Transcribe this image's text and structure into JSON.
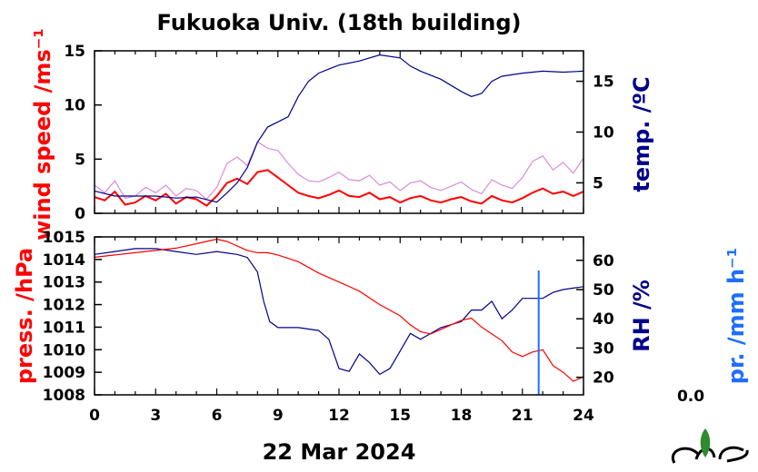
{
  "title": "Fukuoka Univ. (18th building)",
  "date_label": "22 Mar 2024",
  "precip_value": "0.0",
  "colors": {
    "wind": "#ff0000",
    "wind_gust": "#d98ad9",
    "temp": "#00008b",
    "pressure": "#ff0000",
    "rh": "#00008b",
    "precip": "#1e6fff"
  },
  "chart_data": [
    {
      "type": "line",
      "panel": "top",
      "ylabel_left": "wind speed /ms⁻¹",
      "ylabel_right": "temp. /ºC",
      "x_ticks": [
        "0",
        "3",
        "6",
        "9",
        "12",
        "15",
        "18",
        "21",
        "24"
      ],
      "xlim": [
        0,
        24
      ],
      "ylim_left": [
        0,
        15
      ],
      "ylim_right": [
        2,
        18
      ],
      "yticks_left": [
        "0",
        "5",
        "10",
        "15"
      ],
      "yticks_right": [
        "5",
        "10",
        "15"
      ],
      "series": [
        {
          "axis": "right",
          "x": [
            0,
            1,
            2,
            3,
            4,
            5,
            6,
            6.5,
            7,
            7.5,
            8,
            8.5,
            9,
            9.5,
            10,
            10.5,
            11,
            11.5,
            12,
            13,
            14,
            15,
            15.5,
            16,
            17,
            18,
            18.5,
            19,
            19.5,
            20,
            21,
            22,
            23,
            24
          ],
          "values": [
            4.2,
            3.7,
            3.7,
            3.7,
            3.5,
            3.6,
            3.1,
            4.0,
            5.0,
            6.5,
            9.0,
            10.5,
            11.0,
            11.5,
            13.5,
            15.0,
            15.8,
            16.2,
            16.6,
            17.0,
            17.6,
            17.3,
            16.5,
            16.0,
            15.2,
            14.0,
            13.5,
            13.8,
            15.0,
            15.5,
            15.8,
            16.0,
            15.9,
            16.0
          ]
        },
        {
          "axis": "left",
          "x": [
            0,
            0.5,
            1,
            1.5,
            2,
            2.5,
            3,
            3.5,
            4,
            4.5,
            5,
            5.5,
            6,
            6.5,
            7,
            7.5,
            8,
            8.5,
            9,
            9.5,
            10,
            10.5,
            11,
            11.5,
            12,
            12.5,
            13,
            13.5,
            14,
            14.5,
            15,
            15.5,
            16,
            16.5,
            17,
            17.5,
            18,
            18.5,
            19,
            19.5,
            20,
            20.5,
            21,
            21.5,
            22,
            22.5,
            23,
            23.5,
            24
          ],
          "values": [
            1.5,
            1.2,
            2.0,
            0.8,
            1.0,
            1.6,
            1.2,
            1.8,
            0.9,
            1.5,
            1.3,
            0.7,
            1.6,
            2.8,
            3.2,
            2.7,
            3.8,
            4.0,
            3.3,
            2.6,
            1.9,
            1.6,
            1.4,
            1.7,
            2.1,
            1.6,
            1.5,
            1.9,
            1.3,
            1.5,
            1.0,
            1.4,
            1.6,
            1.2,
            1.0,
            1.3,
            1.5,
            1.1,
            0.9,
            1.6,
            1.2,
            1.0,
            1.4,
            1.9,
            2.3,
            1.8,
            2.0,
            1.6,
            2.0
          ]
        },
        {
          "axis": "left",
          "x": [
            0,
            0.5,
            1,
            1.5,
            2,
            2.5,
            3,
            3.5,
            4,
            4.5,
            5,
            5.5,
            6,
            6.5,
            7,
            7.5,
            8,
            8.5,
            9,
            9.5,
            10,
            10.5,
            11,
            11.5,
            12,
            12.5,
            13,
            13.5,
            14,
            14.5,
            15,
            15.5,
            16,
            16.5,
            17,
            17.5,
            18,
            18.5,
            19,
            19.5,
            20,
            20.5,
            21,
            21.5,
            22,
            22.5,
            23,
            23.5,
            24
          ],
          "values": [
            2.6,
            1.9,
            3.0,
            1.4,
            1.6,
            2.4,
            1.9,
            2.6,
            1.6,
            2.3,
            2.1,
            1.3,
            2.4,
            4.6,
            5.2,
            4.4,
            6.6,
            6.0,
            5.8,
            4.6,
            3.6,
            3.0,
            2.9,
            3.3,
            3.8,
            3.1,
            3.0,
            3.5,
            2.6,
            2.9,
            2.1,
            2.8,
            3.0,
            2.4,
            2.1,
            2.5,
            2.9,
            2.2,
            1.8,
            3.1,
            2.6,
            2.3,
            3.3,
            4.8,
            5.3,
            4.0,
            4.7,
            3.7,
            5.1
          ]
        }
      ]
    },
    {
      "type": "line",
      "panel": "bottom",
      "ylabel_left": "press. /hPa",
      "ylabel_right": "RH /%",
      "ylabel_far_right": "pr. /mm h⁻¹",
      "xlabel": "22 Mar 2024",
      "x_ticks": [
        "0",
        "3",
        "6",
        "9",
        "12",
        "15",
        "18",
        "21",
        "24"
      ],
      "xlim": [
        0,
        24
      ],
      "ylim_left": [
        1008,
        1015
      ],
      "ylim_right": [
        14,
        68
      ],
      "yticks_left": [
        "1008",
        "1009",
        "1010",
        "1011",
        "1012",
        "1013",
        "1014",
        "1015"
      ],
      "yticks_right": [
        "20",
        "30",
        "40",
        "50",
        "60"
      ],
      "series": [
        {
          "axis": "left",
          "x": [
            0,
            1,
            2,
            3,
            4,
            5,
            5.5,
            6,
            6.5,
            7,
            7.5,
            8,
            8.5,
            9,
            10,
            11,
            12,
            13,
            14,
            15,
            15.5,
            16,
            16.5,
            17,
            17.5,
            18,
            18.5,
            19,
            19.5,
            20,
            20.5,
            21,
            21.5,
            22,
            22.5,
            23,
            23.5,
            24
          ],
          "values": [
            1014.1,
            1014.2,
            1014.3,
            1014.4,
            1014.5,
            1014.7,
            1014.8,
            1014.9,
            1014.8,
            1014.6,
            1014.4,
            1014.3,
            1014.3,
            1014.2,
            1013.9,
            1013.4,
            1013.0,
            1012.6,
            1012.0,
            1011.5,
            1011.1,
            1010.8,
            1010.7,
            1010.9,
            1011.1,
            1011.3,
            1011.4,
            1011.0,
            1010.7,
            1010.4,
            1009.9,
            1009.7,
            1009.9,
            1010.0,
            1009.3,
            1009.0,
            1008.6,
            1008.8
          ]
        },
        {
          "axis": "right",
          "x": [
            0,
            1,
            2,
            3,
            4,
            5,
            6,
            7,
            7.5,
            8,
            8.3,
            8.6,
            9,
            10,
            11,
            11.5,
            12,
            12.5,
            13,
            13.5,
            14,
            14.5,
            15,
            15.5,
            16,
            17,
            18,
            18.5,
            19,
            19.5,
            20,
            20.5,
            21,
            21.5,
            22,
            22.5,
            23,
            24
          ],
          "values": [
            62,
            63,
            64,
            64,
            63,
            62,
            63,
            62,
            61,
            56,
            46,
            39,
            37,
            37,
            36,
            33,
            23,
            22,
            28,
            25,
            21,
            23,
            29,
            35,
            33,
            37,
            39,
            43,
            43,
            46,
            40,
            43,
            47,
            47,
            47,
            49,
            50,
            51
          ]
        },
        {
          "axis": "precip",
          "x": [
            21.8
          ],
          "values": [
            0.0
          ]
        }
      ]
    }
  ]
}
